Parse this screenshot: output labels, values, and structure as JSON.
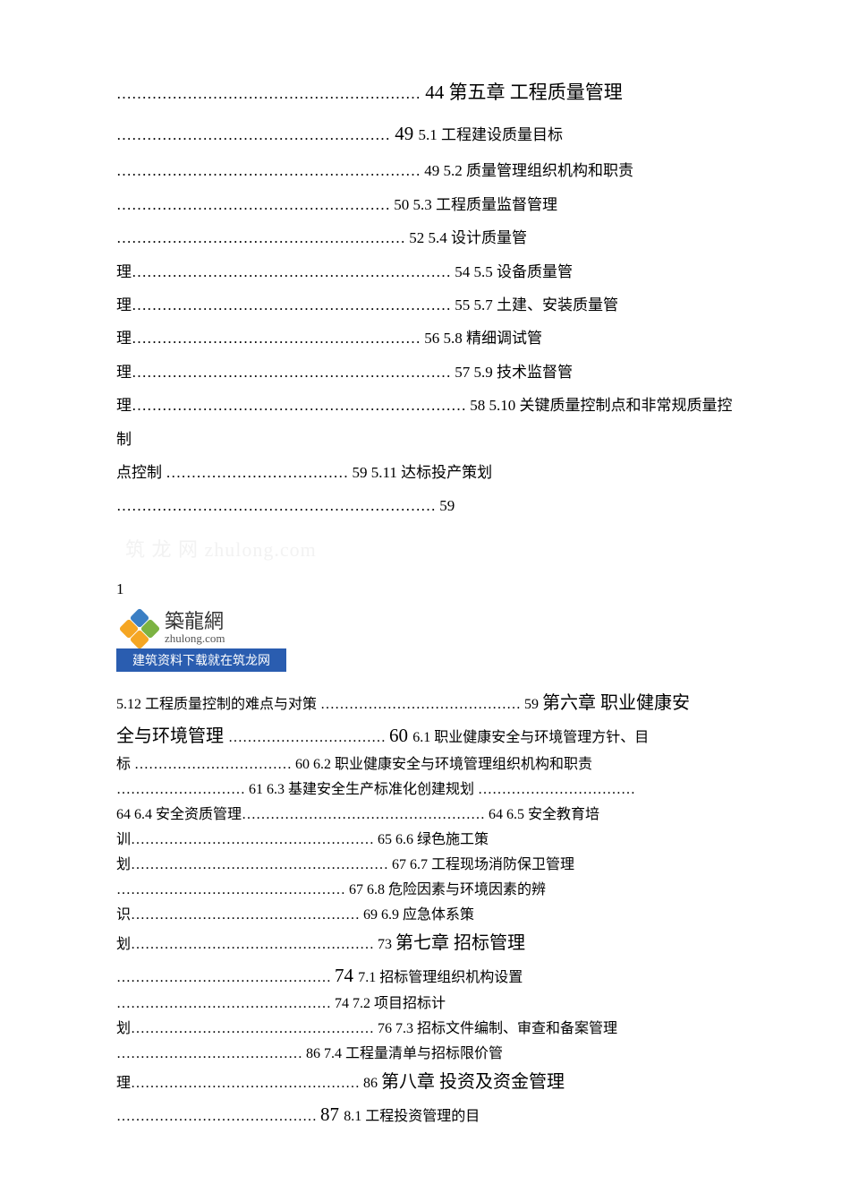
{
  "block1": {
    "entries": [
      {
        "dots": "……………………………………………………",
        "page": "44",
        "title": "第五章 工程质量管理",
        "titleClass": "chapter-title",
        "pageClass": "page-num-large"
      },
      {
        "dots": "………………………………………………",
        "page": "49",
        "title": "5.1 工程建设质量目标",
        "titleClass": "",
        "pageClass": "page-num-large"
      },
      {
        "dots": "……………………………………………………",
        "page": "49",
        "title": "5.2 质量管理组织机构和职责",
        "titleClass": "",
        "pageClass": ""
      },
      {
        "dots": "………………………………………………",
        "page": "50",
        "title": "5.3 工程质量监督管理",
        "titleClass": "",
        "pageClass": ""
      },
      {
        "dots": "…………………………………………………",
        "page": "52",
        "title": "5.4 设计质量管",
        "titleClass": "",
        "pageClass": ""
      },
      {
        "prefix": "理",
        "dots": "………………………………………………………",
        "page": "54",
        "title": "5.5 设备质量管",
        "titleClass": "",
        "pageClass": ""
      },
      {
        "prefix": "理",
        "dots": "………………………………………………………",
        "page": "55",
        "title": "5.7 土建、安装质量管",
        "titleClass": "",
        "pageClass": ""
      },
      {
        "prefix": "理",
        "dots": "…………………………………………………",
        "page": "56",
        "title": "5.8 精细调试管",
        "titleClass": "",
        "pageClass": ""
      },
      {
        "prefix": "理",
        "dots": "………………………………………………………",
        "page": "57",
        "title": "5.9 技术监督管",
        "titleClass": "",
        "pageClass": ""
      },
      {
        "prefix": "理",
        "dots": "…………………………………………………………",
        "page": "58",
        "title": "5.10 关键质量控制点和非常规质量控制",
        "titleClass": "",
        "pageClass": ""
      },
      {
        "prefix": "点控制 ",
        "dots": "………………………………",
        "page": "59",
        "title": "5.11 达标投产策划",
        "titleClass": "",
        "pageClass": ""
      },
      {
        "dots": "………………………………………………………",
        "page": "59",
        "title": "",
        "titleClass": "",
        "pageClass": ""
      }
    ]
  },
  "watermark": "筑 龙 网 zhulong.com",
  "pageNumber": "1",
  "logo": {
    "cn": "築龍網",
    "en": "zhulong.com",
    "banner": "建筑资料下载就在筑龙网"
  },
  "block2": {
    "rawLines": [
      {
        "segments": [
          {
            "text": "5.12 工程质量控制的难点与对策 ",
            "cls": ""
          },
          {
            "text": "…………………………………… 59 ",
            "cls": ""
          },
          {
            "text": "第六章 职业健康安",
            "cls": "chapter-title-bold"
          }
        ]
      },
      {
        "segments": [
          {
            "text": "全与环境管理 ",
            "cls": "chapter-title-bold"
          },
          {
            "text": "…………………………… ",
            "cls": ""
          },
          {
            "text": "60 ",
            "cls": "page-num-large"
          },
          {
            "text": "6.1 职业健康安全与环境管理方针、目",
            "cls": ""
          }
        ]
      },
      {
        "segments": [
          {
            "text": "标 …………………………… 60 6.2 职业健康安全与环境管理组织机构和职责",
            "cls": ""
          }
        ]
      },
      {
        "segments": [
          {
            "text": "……………………… 61 6.3 基建安全生产标准化创建规划 ……………………………",
            "cls": ""
          }
        ]
      },
      {
        "segments": [
          {
            "text": "64 6.4 安全资质管理…………………………………………… 64 6.5 安全教育培",
            "cls": ""
          }
        ]
      },
      {
        "segments": [
          {
            "text": "训…………………………………………… 65 6.6 绿色施工策",
            "cls": ""
          }
        ]
      },
      {
        "segments": [
          {
            "text": "划……………………………………………… 67 6.7 工程现场消防保卫管理",
            "cls": ""
          }
        ]
      },
      {
        "segments": [
          {
            "text": "………………………………………… 67 6.8 危险因素与环境因素的辨",
            "cls": ""
          }
        ]
      },
      {
        "segments": [
          {
            "text": "识………………………………………… 69 6.9 应急体系策",
            "cls": ""
          }
        ]
      },
      {
        "segments": [
          {
            "text": "划…………………………………………… 73 ",
            "cls": ""
          },
          {
            "text": "第七章 招标管理",
            "cls": "chapter-title-bold"
          }
        ]
      },
      {
        "segments": [
          {
            "text": "……………………………………… ",
            "cls": ""
          },
          {
            "text": "74 ",
            "cls": "page-num-large"
          },
          {
            "text": "7.1 招标管理组织机构设置",
            "cls": ""
          }
        ]
      },
      {
        "segments": [
          {
            "text": "……………………………………… 74 7.2 项目招标计",
            "cls": ""
          }
        ]
      },
      {
        "segments": [
          {
            "text": "划…………………………………………… 76 7.3 招标文件编制、审查和备案管理",
            "cls": ""
          }
        ]
      },
      {
        "segments": [
          {
            "text": "………………………………… 86 7.4 工程量清单与招标限价管",
            "cls": ""
          }
        ]
      },
      {
        "segments": [
          {
            "text": "理………………………………………… 86 ",
            "cls": ""
          },
          {
            "text": "第八章 投资及资金管理",
            "cls": "chapter-title-bold"
          }
        ]
      },
      {
        "segments": [
          {
            "text": "…………………………………… ",
            "cls": ""
          },
          {
            "text": "87 ",
            "cls": "page-num-large"
          },
          {
            "text": "8.1 工程投资管理的目",
            "cls": ""
          }
        ]
      }
    ]
  },
  "colors": {
    "text": "#000000",
    "background": "#ffffff",
    "watermark": "#f2f2f2",
    "logoBanner": "#2a5db0",
    "logoPetalBlue": "#3b7fc4",
    "logoPetalOrange": "#f5a623",
    "logoPetalGreen": "#7cb342"
  }
}
